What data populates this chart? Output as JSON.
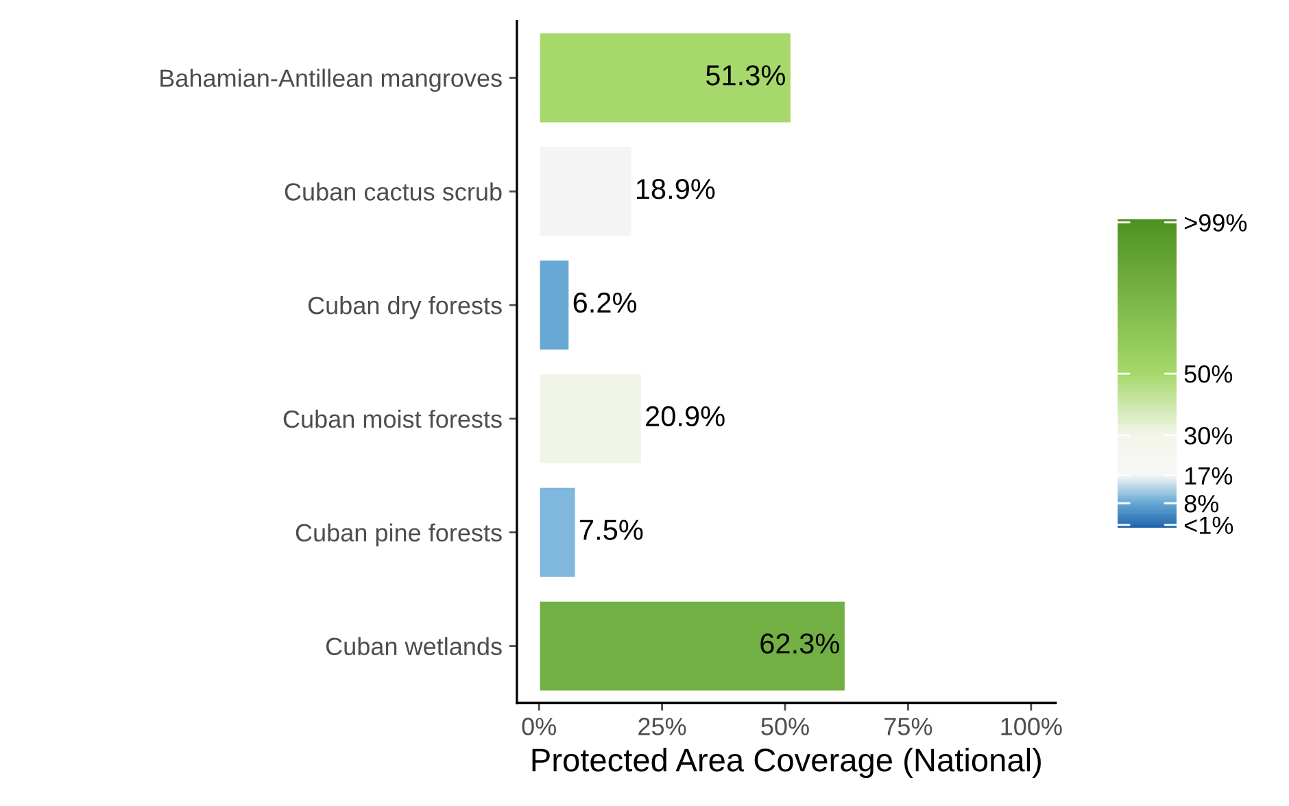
{
  "chart_data": {
    "type": "bar",
    "orientation": "horizontal",
    "xlabel": "Protected Area Coverage (National)",
    "categories": [
      "Bahamian-Antillean mangroves",
      "Cuban cactus scrub",
      "Cuban dry forests",
      "Cuban moist forests",
      "Cuban pine forests",
      "Cuban wetlands"
    ],
    "values": [
      51.3,
      18.9,
      6.2,
      20.9,
      7.5,
      62.3
    ],
    "value_labels": [
      "51.3%",
      "18.9%",
      "6.2%",
      "20.9%",
      "7.5%",
      "62.3%"
    ],
    "colors": [
      "#a6d86b",
      "#f4f4f4",
      "#67a9d4",
      "#f1f4e8",
      "#80b7de",
      "#72b043"
    ],
    "xlim": [
      -4.5,
      105
    ],
    "xticks": [
      {
        "value": 0,
        "label": "0%"
      },
      {
        "value": 25,
        "label": "25%"
      },
      {
        "value": 50,
        "label": "50%"
      },
      {
        "value": 75,
        "label": "75%"
      },
      {
        "value": 100,
        "label": "100%"
      }
    ],
    "clim": [
      0,
      100
    ],
    "cticks": [
      {
        "value": 1,
        "label": "<1%"
      },
      {
        "value": 8,
        "label": "8%"
      },
      {
        "value": 17,
        "label": "17%"
      },
      {
        "value": 30,
        "label": "30%"
      },
      {
        "value": 50,
        "label": "50%"
      },
      {
        "value": 99,
        "label": ">99%"
      }
    ],
    "grid": false,
    "legend": false
  }
}
